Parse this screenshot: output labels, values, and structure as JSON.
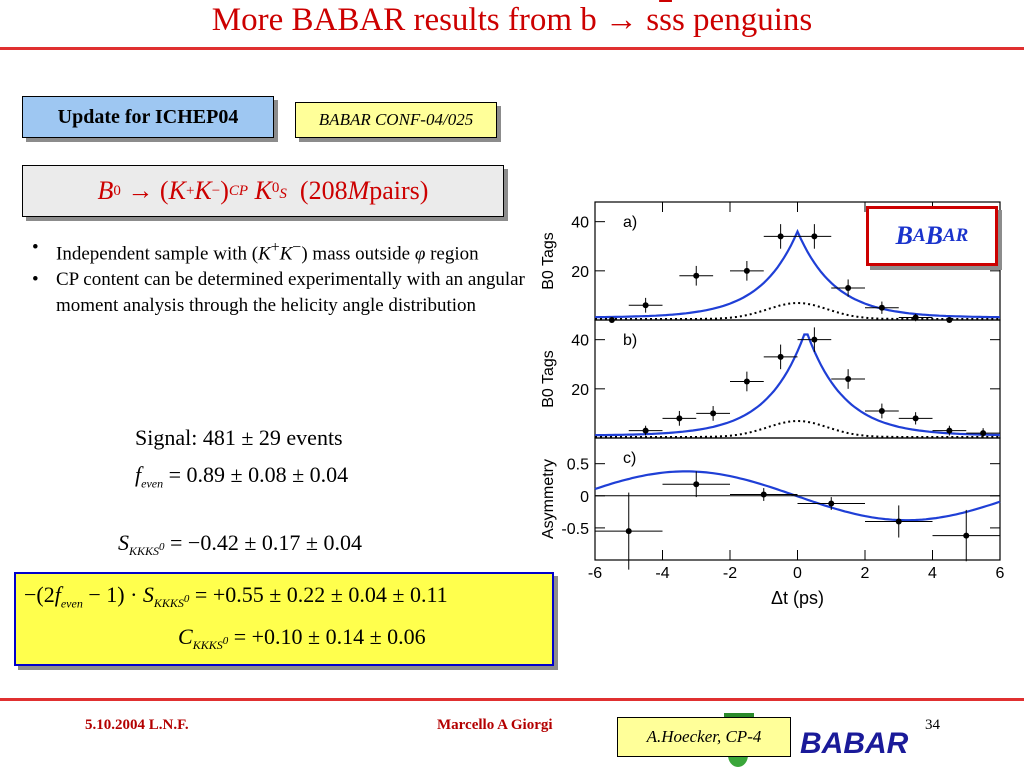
{
  "title": {
    "prefix": "More BABAR results from b",
    "arrow": "→",
    "s1": "s",
    "s2": "s",
    "s3": "s",
    "suffix": "penguins"
  },
  "tags": {
    "update": "Update for ICHEP04",
    "conf": "BABAR CONF-04/025"
  },
  "decay": {
    "B": "B",
    "B_sup": "0",
    "arrow": "→",
    "lpar": "(",
    "K1": "K",
    "K1_sup": "+",
    "K2": "K",
    "K2_sup": "−",
    "rpar": ")",
    "cp": "CP",
    "K3": "K",
    "K3_sup": "0",
    "K3_sub": "S",
    "count_open": "(208",
    "M": "M",
    "pairs": " pairs)"
  },
  "bullets": [
    {
      "a": "Independent sample with (",
      "b": "K",
      "c": "+",
      "d": "K",
      "e": "−",
      "f": ") mass outside ",
      "g": "φ",
      "h": " region"
    },
    {
      "text": "CP content can be determined experimentally with an angular moment analysis through the helicity angle distribution"
    }
  ],
  "results": {
    "signal": "Signal: 481 ± 29 events",
    "feven_sym": "f",
    "feven_sub": "even",
    "feven_val": "= 0.89 ± 0.08 ± 0.04",
    "S_sym": "S",
    "S_sub": "KKK",
    "S_sub2": "S",
    "S_sup": "0",
    "S_val": "= −0.42 ± 0.17 ± 0.04",
    "comb_open": "−(2",
    "comb_f": "f",
    "comb_fsub": "even",
    "comb_mid": " − 1) · ",
    "comb_S": "S",
    "comb_Ssub": "KKK",
    "comb_Ssub2": "S",
    "comb_Ssup": "0",
    "comb_val": "= +0.55 ± 0.22 ± 0.04 ± 0.11",
    "C_sym": "C",
    "C_sub": "KKK",
    "C_sub2": "S",
    "C_sup": "0",
    "C_val": "= +0.10 ± 0.14 ± 0.06"
  },
  "babar_box": {
    "b1": "B",
    "a1": "A",
    "b2": "B",
    "a2": "AR"
  },
  "chart_data": {
    "type": "scatter",
    "xlabel": "Δt (ps)",
    "xlim": [
      -6,
      6
    ],
    "xticks": [
      "-6",
      "-4",
      "-2",
      "0",
      "2",
      "4",
      "6"
    ],
    "panels": [
      {
        "label": "a)",
        "ylabel": "B0 Tags",
        "ylim": [
          0,
          48
        ],
        "yticks": [
          {
            "v": 20,
            "t": "20"
          },
          {
            "v": 40,
            "t": "40"
          }
        ],
        "points": [
          {
            "x": -4.5,
            "y": 6,
            "ex": 0.5,
            "ey": 3
          },
          {
            "x": -3,
            "y": 18,
            "ex": 0.5,
            "ey": 4
          },
          {
            "x": -1.5,
            "y": 20,
            "ex": 0.5,
            "ey": 4
          },
          {
            "x": -0.5,
            "y": 34,
            "ex": 0.5,
            "ey": 5
          },
          {
            "x": 0.5,
            "y": 34,
            "ex": 0.5,
            "ey": 5
          },
          {
            "x": 1.5,
            "y": 13,
            "ex": 0.5,
            "ey": 3.5
          },
          {
            "x": 2.5,
            "y": 5,
            "ex": 0.5,
            "ey": 2.5
          },
          {
            "x": 3.5,
            "y": 1,
            "ex": 0.5,
            "ey": 1.5
          },
          {
            "x": 4.5,
            "y": 0,
            "ex": 0.5,
            "ey": 1
          },
          {
            "x": -5.5,
            "y": 0,
            "ex": 0.5,
            "ey": 1
          }
        ]
      },
      {
        "label": "b)",
        "ylabel": "B0 Tags",
        "ylim": [
          0,
          48
        ],
        "yticks": [
          {
            "v": 20,
            "t": "20"
          },
          {
            "v": 40,
            "t": "40"
          }
        ],
        "points": [
          {
            "x": -4.5,
            "y": 3,
            "ex": 0.5,
            "ey": 2
          },
          {
            "x": -3.5,
            "y": 8,
            "ex": 0.5,
            "ey": 3
          },
          {
            "x": -2.5,
            "y": 10,
            "ex": 0.5,
            "ey": 3
          },
          {
            "x": -1.5,
            "y": 23,
            "ex": 0.5,
            "ey": 4
          },
          {
            "x": -0.5,
            "y": 33,
            "ex": 0.5,
            "ey": 5
          },
          {
            "x": 0.5,
            "y": 40,
            "ex": 0.5,
            "ey": 5
          },
          {
            "x": 1.5,
            "y": 24,
            "ex": 0.5,
            "ey": 4
          },
          {
            "x": 2.5,
            "y": 11,
            "ex": 0.5,
            "ey": 3
          },
          {
            "x": 3.5,
            "y": 8,
            "ex": 0.5,
            "ey": 2.5
          },
          {
            "x": 4.5,
            "y": 3,
            "ex": 0.5,
            "ey": 2
          },
          {
            "x": 5.5,
            "y": 2,
            "ex": 0.5,
            "ey": 2
          }
        ]
      },
      {
        "label": "c)",
        "ylabel": "Asymmetry",
        "ylim": [
          -1,
          0.9
        ],
        "yticks": [
          {
            "v": 0.5,
            "t": "0.5"
          },
          {
            "v": 0,
            "t": "0"
          },
          {
            "v": -0.5,
            "t": "-0.5"
          }
        ],
        "points": [
          {
            "x": -5,
            "y": -0.55,
            "ex": 1,
            "ey": 0.6
          },
          {
            "x": -3,
            "y": 0.18,
            "ex": 1,
            "ey": 0.2
          },
          {
            "x": -1,
            "y": 0.02,
            "ex": 1,
            "ey": 0.1
          },
          {
            "x": 1,
            "y": -0.12,
            "ex": 1,
            "ey": 0.1
          },
          {
            "x": 3,
            "y": -0.4,
            "ex": 1,
            "ey": 0.25
          },
          {
            "x": 5,
            "y": -0.62,
            "ex": 1,
            "ey": 0.4
          }
        ]
      }
    ]
  },
  "footer": {
    "date": "5.10.2004 L.N.F.",
    "author": "Marcello A Giorgi",
    "credit": "A.Hoecker, CP-4",
    "page": "34",
    "logo": "BABAR"
  }
}
